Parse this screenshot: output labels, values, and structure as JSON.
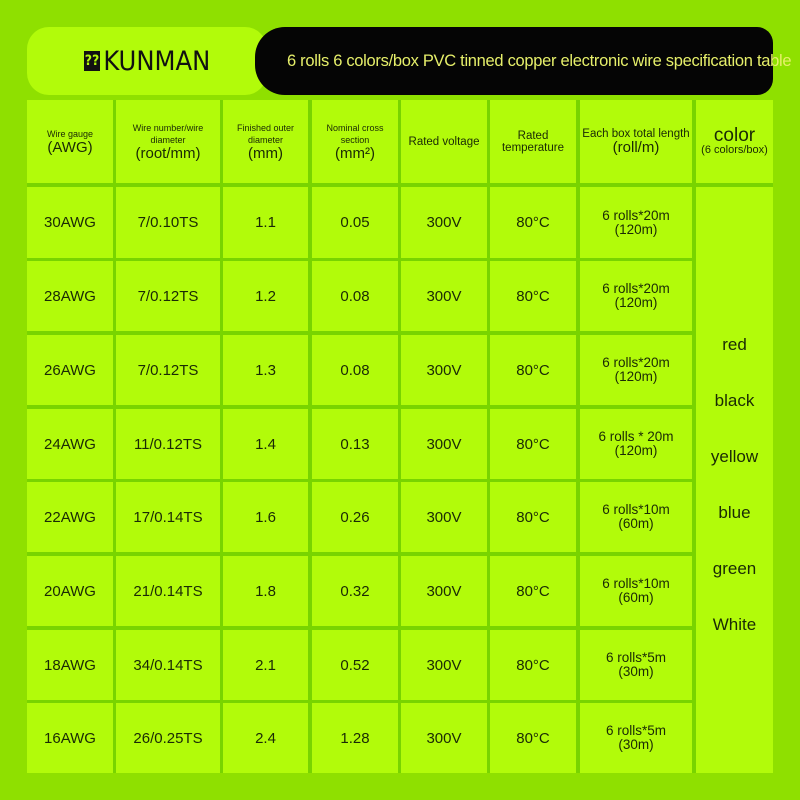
{
  "brand": {
    "mark": "??",
    "name": "KUNMAN"
  },
  "title": "6 rolls 6 colors/box PVC tinned copper electronic wire specification table",
  "headers": [
    {
      "small": "Wire gauge",
      "big": "(AWG)"
    },
    {
      "small": "Wire number/wire diameter",
      "big": "(root/mm)"
    },
    {
      "small": "Finished outer diameter",
      "big": "(mm)"
    },
    {
      "small": "Nominal cross section",
      "big": "(mm²)"
    },
    {
      "small": "Rated voltage",
      "big": ""
    },
    {
      "small": "Rated temperature",
      "big": ""
    },
    {
      "small": "Each box total length",
      "big": "(roll/m)"
    },
    {
      "small": "(6 colors/box)",
      "big": "color"
    }
  ],
  "rows": [
    {
      "awg": "30AWG",
      "strand": "7/0.10TS",
      "od": "1.1",
      "cs": "0.05",
      "v": "300V",
      "t": "80°C",
      "len": "6 rolls*20m",
      "total": "(120m)"
    },
    {
      "awg": "28AWG",
      "strand": "7/0.12TS",
      "od": "1.2",
      "cs": "0.08",
      "v": "300V",
      "t": "80°C",
      "len": "6 rolls*20m",
      "total": "(120m)"
    },
    {
      "awg": "26AWG",
      "strand": "7/0.12TS",
      "od": "1.3",
      "cs": "0.08",
      "v": "300V",
      "t": "80°C",
      "len": "6 rolls*20m",
      "total": "(120m)"
    },
    {
      "awg": "24AWG",
      "strand": "11/0.12TS",
      "od": "1.4",
      "cs": "0.13",
      "v": "300V",
      "t": "80°C",
      "len": "6 rolls * 20m",
      "total": "(120m)"
    },
    {
      "awg": "22AWG",
      "strand": "17/0.14TS",
      "od": "1.6",
      "cs": "0.26",
      "v": "300V",
      "t": "80°C",
      "len": "6 rolls*10m",
      "total": "(60m)"
    },
    {
      "awg": "20AWG",
      "strand": "21/0.14TS",
      "od": "1.8",
      "cs": "0.32",
      "v": "300V",
      "t": "80°C",
      "len": "6 rolls*10m",
      "total": "(60m)"
    },
    {
      "awg": "18AWG",
      "strand": "34/0.14TS",
      "od": "2.1",
      "cs": "0.52",
      "v": "300V",
      "t": "80°C",
      "len": "6 rolls*5m",
      "total": "(30m)"
    },
    {
      "awg": "16AWG",
      "strand": "26/0.25TS",
      "od": "2.4",
      "cs": "1.28",
      "v": "300V",
      "t": "80°C",
      "len": "6 rolls*5m",
      "total": "(30m)"
    }
  ],
  "colors": [
    "red",
    "black",
    "yellow",
    "blue",
    "green",
    "White"
  ],
  "palette": {
    "background": "#8fe000",
    "cell": "#b2fb0a",
    "title_bar": "#050505",
    "title_text": "#e6ef6a"
  }
}
